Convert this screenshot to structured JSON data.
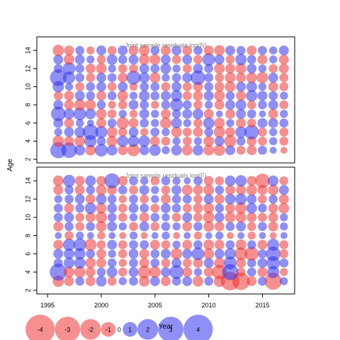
{
  "chart_data": [
    {
      "type": "scatter",
      "title": "Joint sample residuals log(N)",
      "ylabel": "Age",
      "xlim": [
        1994,
        2018
      ],
      "ylim": [
        1.6,
        15.5
      ],
      "x_ticks": [
        1995,
        2000,
        2005,
        2010,
        2015
      ],
      "y_ticks": [
        2,
        4,
        6,
        8,
        10,
        12,
        14
      ],
      "x_tick_labels_shown": false,
      "years": [
        1996,
        1997,
        1998,
        1999,
        2000,
        2001,
        2002,
        2003,
        2004,
        2005,
        2006,
        2007,
        2008,
        2009,
        2010,
        2011,
        2012,
        2013,
        2014,
        2015,
        2016,
        2017
      ],
      "ages": [
        3,
        4,
        5,
        6,
        7,
        8,
        9,
        10,
        11,
        12,
        13,
        14
      ],
      "residuals": [
        [
          1.6,
          1.5,
          0.7,
          -0.7,
          1.0,
          0.7,
          -0.6,
          -0.9,
          0.6,
          0.8,
          0.4,
          0.7,
          -0.7,
          0.7,
          -0.7,
          -0.8,
          0.6,
          -0.5,
          -0.6,
          0.5,
          0.3,
          -0.3
        ],
        [
          -0.8,
          -0.6,
          -0.7,
          0.9,
          0.5,
          -0.7,
          0.8,
          0.8,
          0.8,
          -0.6,
          -0.5,
          0.4,
          -0.5,
          0.4,
          -0.7,
          0.6,
          -0.9,
          0.5,
          -0.6,
          -0.5,
          0.4,
          -0.5
        ],
        [
          0.4,
          0.6,
          0.7,
          1.5,
          0.9,
          -0.7,
          -0.5,
          0.6,
          -0.4,
          0.5,
          0.4,
          -0.7,
          -0.5,
          -0.6,
          0.5,
          -0.8,
          -0.6,
          0.8,
          1.3,
          -0.5,
          0.4,
          -0.5
        ],
        [
          0.6,
          -0.6,
          0.4,
          0.3,
          -0.6,
          0.5,
          -0.9,
          -0.6,
          0.5,
          0.4,
          -0.8,
          0.7,
          0.4,
          -0.5,
          0.8,
          -0.7,
          0.4,
          -0.6,
          -0.5,
          0.6,
          0.6,
          0.5
        ],
        [
          1.3,
          0.7,
          1.0,
          0.7,
          -0.7,
          -0.5,
          0.4,
          -0.4,
          0.6,
          0.4,
          -0.6,
          0.5,
          0.6,
          0.7,
          -0.6,
          0.3,
          -0.6,
          0.6,
          0.5,
          0.3,
          -0.6,
          0.4
        ],
        [
          0.6,
          -0.6,
          -0.8,
          -0.7,
          0.5,
          -0.4,
          -0.5,
          0.6,
          0.5,
          -0.4,
          0.5,
          1.0,
          0.5,
          -0.5,
          0.4,
          -0.6,
          0.6,
          0.7,
          -0.5,
          0.5,
          0.6,
          -0.5
        ],
        [
          -0.5,
          -0.6,
          0.6,
          0.5,
          -0.6,
          0.5,
          -0.7,
          0.4,
          0.7,
          0.5,
          0.6,
          0.8,
          -0.5,
          -0.6,
          0.6,
          -0.7,
          0.5,
          -0.6,
          0.8,
          0.6,
          0.5,
          0.4
        ],
        [
          0.8,
          0.4,
          -0.5,
          0.5,
          0.6,
          -0.5,
          0.6,
          -0.4,
          0.5,
          0.5,
          -0.5,
          0.6,
          -0.5,
          -0.6,
          0.5,
          -0.6,
          -0.7,
          0.6,
          0.7,
          0.4,
          -0.6,
          -0.5
        ],
        [
          1.7,
          0.9,
          0.5,
          -0.5,
          0.6,
          0.5,
          -0.6,
          1.2,
          0.7,
          -0.7,
          0.4,
          0.5,
          0.6,
          1.3,
          0.5,
          -0.5,
          -0.7,
          -0.6,
          -0.7,
          -0.8,
          0.6,
          -0.5
        ],
        [
          0.5,
          1.0,
          0.5,
          -0.6,
          -0.7,
          0.4,
          -0.5,
          -0.5,
          0.6,
          0.5,
          0.7,
          0.4,
          -0.5,
          0.6,
          0.5,
          -0.7,
          -0.6,
          -0.7,
          0.6,
          0.4,
          -0.5,
          -0.6
        ],
        [
          0.6,
          -0.7,
          0.6,
          0.4,
          -0.5,
          0.7,
          0.5,
          0.6,
          -0.7,
          -0.7,
          0.6,
          -0.5,
          0.6,
          -0.5,
          1.0,
          0.6,
          -0.5,
          0.8,
          0.5,
          -0.6,
          0.4,
          -0.6
        ],
        [
          -0.8,
          -0.6,
          0.5,
          -0.4,
          0.6,
          -0.5,
          0.6,
          -0.6,
          -0.7,
          0.5,
          -0.6,
          0.6,
          -0.6,
          0.5,
          -0.6,
          -0.7,
          0.6,
          0.5,
          -0.6,
          0.5,
          0.4,
          0.6
        ]
      ]
    },
    {
      "type": "scatter",
      "title": "Joint sample residuals log(F)",
      "xlabel": "Year",
      "xlim": [
        1994,
        2018
      ],
      "ylim": [
        1.6,
        15.5
      ],
      "x_ticks": [
        1995,
        2000,
        2005,
        2010,
        2015
      ],
      "y_ticks": [
        2,
        4,
        6,
        8,
        10,
        12,
        14
      ],
      "x_tick_labels_shown": true,
      "years": [
        1996,
        1997,
        1998,
        1999,
        2000,
        2001,
        2002,
        2003,
        2004,
        2005,
        2006,
        2007,
        2008,
        2009,
        2010,
        2011,
        2012,
        2013,
        2014,
        2015,
        2016,
        2017
      ],
      "ages": [
        3,
        4,
        5,
        6,
        7,
        8,
        9,
        10,
        11,
        12,
        13,
        14
      ],
      "residuals": [
        [
          -0.8,
          -0.6,
          0.5,
          -0.6,
          0.7,
          -0.5,
          0.4,
          0.5,
          -0.7,
          0.6,
          -0.6,
          0.5,
          0.6,
          -0.7,
          0.5,
          -0.8,
          -2.1,
          -1.9,
          -0.6,
          0.5,
          -1.8,
          0.4
        ],
        [
          1.8,
          -0.7,
          -0.8,
          -0.6,
          0.5,
          0.7,
          -0.5,
          0.6,
          -1.0,
          -0.8,
          0.6,
          1.2,
          -0.6,
          0.4,
          -0.6,
          -1.3,
          1.6,
          -0.5,
          0.5,
          -0.6,
          0.9,
          -0.4
        ],
        [
          0.5,
          0.7,
          0.8,
          -0.7,
          -0.6,
          0.5,
          -0.4,
          0.5,
          -0.6,
          0.5,
          -0.5,
          0.6,
          -0.5,
          -0.6,
          0.6,
          -0.7,
          1.0,
          -0.6,
          0.5,
          0.6,
          1.1,
          0.5
        ],
        [
          0.6,
          0.7,
          0.8,
          0.5,
          -0.6,
          0.4,
          -0.5,
          0.6,
          -0.6,
          0.5,
          0.6,
          -0.8,
          0.6,
          1.0,
          -0.7,
          0.6,
          0.8,
          -1.0,
          -1.2,
          0.5,
          1.3,
          -0.5
        ],
        [
          -0.6,
          0.9,
          1.0,
          -0.9,
          -0.5,
          0.6,
          -0.5,
          0.5,
          0.5,
          -0.6,
          -0.5,
          0.4,
          -0.6,
          0.5,
          -0.7,
          -0.6,
          0.5,
          -0.7,
          0.5,
          -0.6,
          0.9,
          -0.5
        ],
        [
          0.3,
          -0.5,
          0.4,
          0.3,
          -0.4,
          0.3,
          -0.3,
          0.4,
          -0.3,
          0.3,
          0.4,
          -0.3,
          0.3,
          -0.4,
          0.3,
          0.4,
          -0.3,
          0.3,
          -0.4,
          0.3,
          -0.3,
          0.3
        ],
        [
          -0.6,
          0.5,
          -0.5,
          0.5,
          -0.7,
          0.6,
          0.4,
          -0.5,
          0.6,
          -0.5,
          0.5,
          0.4,
          -0.6,
          0.5,
          -0.7,
          -0.6,
          0.5,
          0.6,
          -0.5,
          0.5,
          -0.6,
          0.4
        ],
        [
          0.5,
          0.6,
          -0.5,
          -0.6,
          -0.8,
          0.5,
          -0.5,
          0.4,
          -0.6,
          0.5,
          0.4,
          -0.5,
          0.6,
          -0.5,
          -0.8,
          0.6,
          -0.7,
          -0.7,
          -0.6,
          -0.5,
          -0.6,
          0.4
        ],
        [
          0.5,
          -0.6,
          0.5,
          0.8,
          -0.7,
          0.6,
          -0.5,
          0.6,
          0.5,
          -0.5,
          0.6,
          0.5,
          -0.5,
          -0.6,
          -0.7,
          0.5,
          -0.6,
          -0.8,
          0.7,
          0.5,
          -0.6,
          -0.7
        ],
        [
          0.4,
          0.5,
          0.6,
          -0.6,
          0.7,
          0.5,
          -0.4,
          0.5,
          -0.5,
          0.4,
          -0.6,
          0.5,
          0.5,
          -0.5,
          0.6,
          -0.6,
          0.7,
          0.8,
          0.6,
          -0.5,
          0.5,
          -0.6
        ],
        [
          -0.6,
          0.5,
          -0.6,
          0.5,
          -0.7,
          -0.6,
          0.5,
          -0.5,
          0.6,
          0.4,
          -0.5,
          0.6,
          -0.7,
          -0.6,
          -0.7,
          0.5,
          -0.6,
          -0.6,
          -0.7,
          -0.6,
          -0.7,
          0.6
        ],
        [
          -0.7,
          0.9,
          -0.6,
          0.7,
          -0.6,
          1.4,
          -0.6,
          0.5,
          0.4,
          -0.5,
          0.5,
          0.4,
          0.3,
          0.5,
          -0.6,
          -0.5,
          0.7,
          0.8,
          -0.6,
          -1.3,
          0.7,
          -0.5
        ]
      ]
    }
  ],
  "legend": {
    "items": [
      {
        "value": -4,
        "label": "-4"
      },
      {
        "value": -3,
        "label": "-3"
      },
      {
        "value": -2,
        "label": "-2"
      },
      {
        "value": -1,
        "label": "-1"
      },
      {
        "value": 0,
        "label": "0"
      },
      {
        "value": 1,
        "label": "1"
      },
      {
        "value": 2,
        "label": "2"
      },
      {
        "value": 3,
        "label": "3"
      },
      {
        "value": 4,
        "label": "4"
      }
    ]
  },
  "colors": {
    "positive": "#3333ee",
    "negative": "#ee3333",
    "axis": "#000000",
    "title": "#808080"
  },
  "shared_ylabel": "Age",
  "shared_xlabel": "Year"
}
